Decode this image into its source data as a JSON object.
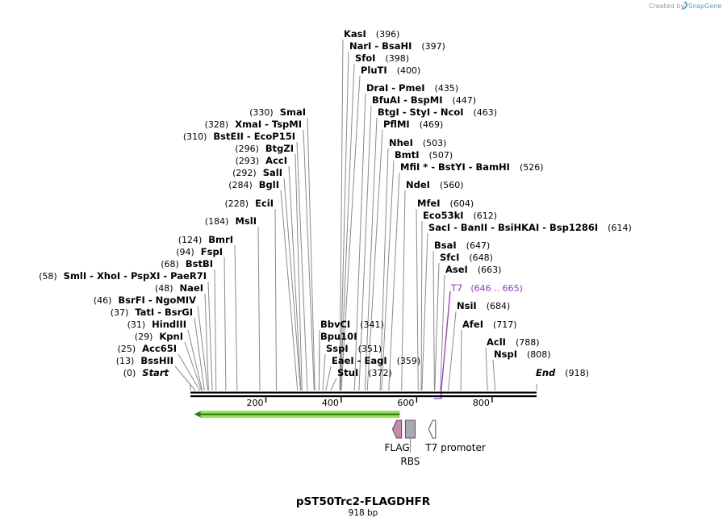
{
  "app": {
    "credit": "Created by",
    "brand": "SnapGene",
    "brand_color": "#4f9fd8"
  },
  "map": {
    "name": "pST50Trc2-FLAGDHFR",
    "size_label": "918 bp",
    "length_bp": 918,
    "ticks": [
      {
        "bp": 200,
        "label": "200"
      },
      {
        "bp": 400,
        "label": "400"
      },
      {
        "bp": 600,
        "label": "600"
      },
      {
        "bp": 800,
        "label": "800"
      }
    ],
    "sites": [
      {
        "text": "KasI",
        "pos": "(396)",
        "bp": 396,
        "side": "right"
      },
      {
        "text": "NarI  - BsaHI",
        "pos": "(397)",
        "bp": 397,
        "side": "right"
      },
      {
        "text": "SfoI",
        "pos": "(398)",
        "bp": 398,
        "side": "right"
      },
      {
        "text": "PluTI",
        "pos": "(400)",
        "bp": 400,
        "side": "right"
      },
      {
        "text": "DraI  - PmeI",
        "pos": "(435)",
        "bp": 435,
        "side": "right"
      },
      {
        "text": "BfuAI  - BspMI",
        "pos": "(447)",
        "bp": 447,
        "side": "right"
      },
      {
        "text": "BtgI  - StyI  - NcoI",
        "pos": "(463)",
        "bp": 463,
        "side": "right"
      },
      {
        "text": "PflMI",
        "pos": "(469)",
        "bp": 469,
        "side": "right"
      },
      {
        "text": "NheI",
        "pos": "(503)",
        "bp": 503,
        "side": "right"
      },
      {
        "text": "BmtI",
        "pos": "(507)",
        "bp": 507,
        "side": "right"
      },
      {
        "text": "MfiI * - BstYI  - BamHI",
        "pos": "(526)",
        "bp": 526,
        "side": "right"
      },
      {
        "text": "NdeI",
        "pos": "(560)",
        "bp": 560,
        "side": "right"
      },
      {
        "text": "MfeI",
        "pos": "(604)",
        "bp": 604,
        "side": "right"
      },
      {
        "text": "Eco53kI",
        "pos": "(612)",
        "bp": 612,
        "side": "right"
      },
      {
        "text": "SacI  - BanII  - BsiHKAI  - Bsp1286I",
        "pos": "(614)",
        "bp": 614,
        "side": "right"
      },
      {
        "text": "BsaI",
        "pos": "(647)",
        "bp": 647,
        "side": "right"
      },
      {
        "text": "SfcI",
        "pos": "(648)",
        "bp": 648,
        "side": "right"
      },
      {
        "text": "AseI",
        "pos": "(663)",
        "bp": 663,
        "side": "right"
      },
      {
        "text": "NsiI",
        "pos": "(684)",
        "bp": 684,
        "side": "right"
      },
      {
        "text": "AfeI",
        "pos": "(717)",
        "bp": 717,
        "side": "right"
      },
      {
        "text": "AclI",
        "pos": "(788)",
        "bp": 788,
        "side": "right"
      },
      {
        "text": "NspI",
        "pos": "(808)",
        "bp": 808,
        "side": "right"
      },
      {
        "text": "SmaI",
        "pos": "(330)",
        "bp": 330,
        "side": "left"
      },
      {
        "text": "XmaI  - TspMI",
        "pos": "(328)",
        "bp": 328,
        "side": "left"
      },
      {
        "text": "BstEII  - EcoP15I",
        "pos": "(310)",
        "bp": 310,
        "side": "left"
      },
      {
        "text": "BtgZI",
        "pos": "(296)",
        "bp": 296,
        "side": "left"
      },
      {
        "text": "AccI",
        "pos": "(293)",
        "bp": 293,
        "side": "left"
      },
      {
        "text": "SalI",
        "pos": "(292)",
        "bp": 292,
        "side": "left"
      },
      {
        "text": "BglI",
        "pos": "(284)",
        "bp": 284,
        "side": "left"
      },
      {
        "text": "EciI",
        "pos": "(228)",
        "bp": 228,
        "side": "left"
      },
      {
        "text": "MslI",
        "pos": "(184)",
        "bp": 184,
        "side": "left"
      },
      {
        "text": "BmrI",
        "pos": "(124)",
        "bp": 124,
        "side": "left"
      },
      {
        "text": "FspI",
        "pos": "(94)",
        "bp": 94,
        "side": "left"
      },
      {
        "text": "BstBI",
        "pos": "(68)",
        "bp": 68,
        "side": "left"
      },
      {
        "text": "SmlI  - XhoI  - PspXI  - PaeR7I",
        "pos": "(58)",
        "bp": 58,
        "side": "left"
      },
      {
        "text": "NaeI",
        "pos": "(48)",
        "bp": 48,
        "side": "left"
      },
      {
        "text": "BsrFI  - NgoMIV",
        "pos": "(46)",
        "bp": 46,
        "side": "left"
      },
      {
        "text": "TatI  - BsrGI",
        "pos": "(37)",
        "bp": 37,
        "side": "left"
      },
      {
        "text": "HindIII",
        "pos": "(31)",
        "bp": 31,
        "side": "left"
      },
      {
        "text": "KpnI",
        "pos": "(29)",
        "bp": 29,
        "side": "left"
      },
      {
        "text": "Acc65I",
        "pos": "(25)",
        "bp": 25,
        "side": "left"
      },
      {
        "text": "BssHII",
        "pos": "(13)",
        "bp": 13,
        "side": "left"
      },
      {
        "text": "BbvCI",
        "pos": "(341)",
        "bp": 341,
        "side": "right"
      },
      {
        "text": "Bpu10I",
        "pos": "",
        "bp": 341,
        "side": "right"
      },
      {
        "text": "SspI",
        "pos": "(351)",
        "bp": 351,
        "side": "right"
      },
      {
        "text": "EaeI  - EagI",
        "pos": "(359)",
        "bp": 359,
        "side": "right"
      },
      {
        "text": "StuI",
        "pos": "(372)",
        "bp": 372,
        "side": "right"
      }
    ],
    "ends": [
      {
        "text": "Start",
        "pos": "(0)",
        "bp": 0,
        "side": "left"
      },
      {
        "text": "End",
        "pos": "(918)",
        "bp": 918,
        "side": "right"
      }
    ],
    "primer": {
      "text": "T7",
      "pos": "(646 .. 665)",
      "start_bp": 646,
      "end_bp": 665,
      "color": "#9b30d9"
    },
    "features": [
      {
        "name": "DHFR ORF",
        "label": "",
        "start_bp": 10,
        "end_bp": 555,
        "direction": "reverse",
        "color": "#9be05a",
        "stroke": "#2a7a10"
      },
      {
        "name": "FLAG",
        "label": "FLAG",
        "start_bp": 536,
        "end_bp": 560,
        "direction": "reverse",
        "color": "#c58ab0",
        "stroke": "#6a3a5a"
      },
      {
        "name": "RBS",
        "label": "RBS",
        "start_bp": 570,
        "end_bp": 596,
        "direction": "none",
        "color": "#a9aab0",
        "stroke": "#505058"
      },
      {
        "name": "T7 promoter",
        "label": "T7 promoter",
        "start_bp": 632,
        "end_bp": 650,
        "direction": "reverse",
        "color": "#ffffff",
        "stroke": "#505050"
      }
    ]
  }
}
